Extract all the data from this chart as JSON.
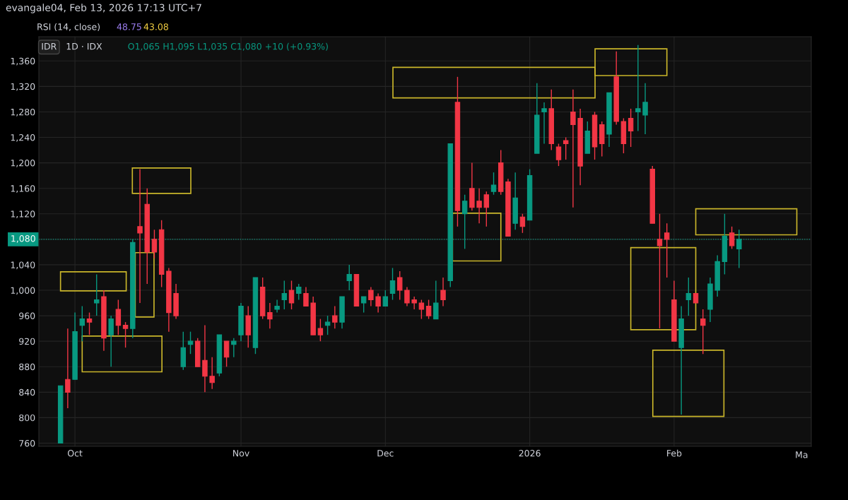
{
  "chart_data": {
    "type": "candlestick",
    "title": "1D · IDX",
    "annotations": [
      "evangale04, Feb 13, 2026 17:13 UTC+7",
      "RSI (14, close)",
      "48.75",
      "43.08",
      "IDR",
      "O1,065 H1,095 L1,035 C1,080 +10 (+0.93%)",
      "Ma"
    ],
    "categories": [
      null,
      null,
      "Oct",
      null,
      null,
      null,
      null,
      null,
      null,
      null,
      null,
      null,
      null,
      null,
      null,
      null,
      null,
      null,
      null,
      null,
      null,
      null,
      null,
      null,
      null,
      "Nov",
      null,
      null,
      null,
      null,
      null,
      null,
      null,
      null,
      null,
      null,
      null,
      null,
      null,
      null,
      null,
      null,
      null,
      null,
      null,
      "Dec",
      null,
      null,
      null,
      null,
      null,
      null,
      null,
      null,
      null,
      null,
      null,
      null,
      null,
      null,
      null,
      null,
      null,
      null,
      null,
      "2026",
      null,
      null,
      null,
      null,
      null,
      null,
      null,
      null,
      null,
      null,
      null,
      null,
      null,
      null,
      null,
      null,
      null,
      null,
      null,
      "Feb",
      null,
      null,
      null,
      null,
      null,
      null,
      null,
      null,
      null
    ],
    "ohlc": [
      [
        760,
        850,
        760,
        850
      ],
      [
        860,
        940,
        815,
        840
      ],
      [
        860,
        965,
        860,
        935
      ],
      [
        945,
        975,
        920,
        955
      ],
      [
        955,
        965,
        930,
        950
      ],
      [
        980,
        1025,
        960,
        985
      ],
      [
        990,
        1000,
        905,
        925
      ],
      [
        930,
        960,
        880,
        955
      ],
      [
        970,
        985,
        930,
        945
      ],
      [
        945,
        950,
        910,
        940
      ],
      [
        940,
        1080,
        925,
        1075
      ],
      [
        1100,
        1190,
        980,
        1090
      ],
      [
        1135,
        1160,
        1010,
        1060
      ],
      [
        1080,
        1095,
        1050,
        1060
      ],
      [
        1095,
        1110,
        1005,
        1025
      ],
      [
        1030,
        1035,
        935,
        965
      ],
      [
        995,
        1010,
        955,
        960
      ],
      [
        880,
        935,
        875,
        910
      ],
      [
        915,
        935,
        900,
        920
      ],
      [
        920,
        925,
        880,
        880
      ],
      [
        890,
        945,
        840,
        865
      ],
      [
        865,
        895,
        845,
        855
      ],
      [
        870,
        930,
        865,
        930
      ],
      [
        920,
        920,
        880,
        895
      ],
      [
        915,
        925,
        895,
        920
      ],
      [
        930,
        980,
        920,
        975
      ],
      [
        960,
        975,
        910,
        930
      ],
      [
        910,
        1020,
        900,
        1020
      ],
      [
        1005,
        1020,
        955,
        960
      ],
      [
        965,
        980,
        940,
        955
      ],
      [
        970,
        985,
        965,
        975
      ],
      [
        985,
        1015,
        970,
        995
      ],
      [
        1000,
        1015,
        970,
        980
      ],
      [
        995,
        1010,
        985,
        1005
      ],
      [
        995,
        1005,
        975,
        975
      ],
      [
        980,
        990,
        930,
        930
      ],
      [
        940,
        955,
        920,
        930
      ],
      [
        945,
        960,
        930,
        950
      ],
      [
        960,
        975,
        940,
        950
      ],
      [
        950,
        990,
        940,
        990
      ],
      [
        1015,
        1040,
        1000,
        1025
      ],
      [
        1025,
        1025,
        975,
        975
      ],
      [
        980,
        990,
        965,
        990
      ],
      [
        1000,
        1005,
        975,
        985
      ],
      [
        990,
        995,
        965,
        975
      ],
      [
        975,
        1000,
        975,
        990
      ],
      [
        995,
        1035,
        985,
        1015
      ],
      [
        1020,
        1030,
        985,
        1000
      ],
      [
        1000,
        1005,
        975,
        980
      ],
      [
        985,
        990,
        970,
        980
      ],
      [
        980,
        985,
        955,
        970
      ],
      [
        975,
        985,
        955,
        960
      ],
      [
        955,
        1015,
        955,
        980
      ],
      [
        1000,
        1020,
        975,
        985
      ],
      [
        1015,
        1230,
        1005,
        1230
      ],
      [
        1295,
        1335,
        1100,
        1125
      ],
      [
        1120,
        1150,
        1065,
        1140
      ],
      [
        1160,
        1200,
        1125,
        1130
      ],
      [
        1140,
        1160,
        1105,
        1130
      ],
      [
        1150,
        1155,
        1100,
        1130
      ],
      [
        1155,
        1185,
        1150,
        1165
      ],
      [
        1200,
        1220,
        1150,
        1155
      ],
      [
        1170,
        1175,
        1085,
        1085
      ],
      [
        1105,
        1185,
        1095,
        1145
      ],
      [
        1115,
        1120,
        1090,
        1100
      ],
      [
        1110,
        1190,
        1110,
        1180
      ],
      [
        1215,
        1325,
        1215,
        1275
      ],
      [
        1280,
        1295,
        1230,
        1285
      ],
      [
        1285,
        1315,
        1220,
        1230
      ],
      [
        1225,
        1230,
        1195,
        1205
      ],
      [
        1235,
        1240,
        1205,
        1230
      ],
      [
        1280,
        1315,
        1130,
        1260
      ],
      [
        1270,
        1285,
        1165,
        1195
      ],
      [
        1215,
        1265,
        1215,
        1250
      ],
      [
        1275,
        1280,
        1205,
        1225
      ],
      [
        1260,
        1265,
        1210,
        1230
      ],
      [
        1245,
        1310,
        1225,
        1310
      ],
      [
        1335,
        1375,
        1260,
        1265
      ],
      [
        1265,
        1270,
        1215,
        1230
      ],
      [
        1270,
        1285,
        1225,
        1250
      ],
      [
        1280,
        1385,
        1250,
        1285
      ],
      [
        1275,
        1325,
        1245,
        1295
      ],
      [
        1190,
        1195,
        1105,
        1105
      ],
      [
        1080,
        1120,
        940,
        1070
      ],
      [
        1090,
        1105,
        1020,
        1080
      ],
      [
        985,
        1015,
        920,
        920
      ],
      [
        910,
        975,
        805,
        955
      ],
      [
        985,
        1020,
        960,
        995
      ],
      [
        995,
        995,
        980,
        980
      ],
      [
        955,
        970,
        900,
        945
      ],
      [
        970,
        1020,
        950,
        1010
      ],
      [
        1000,
        1055,
        990,
        1045
      ],
      [
        1045,
        1120,
        1025,
        1085
      ],
      [
        1090,
        1100,
        1065,
        1070
      ],
      [
        1065,
        1095,
        1035,
        1080
      ]
    ],
    "colors": [
      "#089981",
      "#f23645",
      "#089981",
      "#089981",
      "#f23645",
      "#089981",
      "#f23645",
      "#089981",
      "#f23645",
      "#f23645",
      "#089981",
      "#f23645",
      "#f23645",
      "#f23645",
      "#f23645",
      "#f23645",
      "#f23645",
      "#089981",
      "#089981",
      "#f23645",
      "#f23645",
      "#f23645",
      "#089981",
      "#f23645",
      "#089981",
      "#089981",
      "#f23645",
      "#089981",
      "#f23645",
      "#f23645",
      "#089981",
      "#089981",
      "#f23645",
      "#089981",
      "#f23645",
      "#f23645",
      "#f23645",
      "#089981",
      "#f23645",
      "#089981",
      "#089981",
      "#f23645",
      "#089981",
      "#f23645",
      "#f23645",
      "#089981",
      "#089981",
      "#f23645",
      "#f23645",
      "#f23645",
      "#f23645",
      "#f23645",
      "#089981",
      "#f23645",
      "#089981",
      "#f23645",
      "#089981",
      "#f23645",
      "#f23645",
      "#f23645",
      "#089981",
      "#f23645",
      "#f23645",
      "#089981",
      "#f23645",
      "#089981",
      "#089981",
      "#089981",
      "#f23645",
      "#f23645",
      "#f23645",
      "#f23645",
      "#f23645",
      "#089981",
      "#f23645",
      "#f23645",
      "#089981",
      "#f23645",
      "#f23645",
      "#f23645",
      "#089981",
      "#089981",
      "#f23645",
      "#f23645",
      "#f23645",
      "#f23645",
      "#089981",
      "#089981",
      "#f23645",
      "#f23645",
      "#089981",
      "#089981",
      "#089981",
      "#f23645",
      "#089981"
    ],
    "ylim": [
      755,
      1398
    ],
    "yticks": [
      {
        "value": 760,
        "label": "760"
      },
      {
        "value": 800,
        "label": "800"
      },
      {
        "value": 840,
        "label": "840"
      },
      {
        "value": 880,
        "label": "880"
      },
      {
        "value": 920,
        "label": "920"
      },
      {
        "value": 960,
        "label": "960"
      },
      {
        "value": 1000,
        "label": "1,000"
      },
      {
        "value": 1040,
        "label": "1,040"
      },
      {
        "value": 1080,
        "label": "1,080"
      },
      {
        "value": 1120,
        "label": "1,120"
      },
      {
        "value": 1160,
        "label": "1,160"
      },
      {
        "value": 1200,
        "label": "1,200"
      },
      {
        "value": 1240,
        "label": "1,240"
      },
      {
        "value": 1280,
        "label": "1,280"
      },
      {
        "value": 1320,
        "label": "1,320"
      },
      {
        "value": 1360,
        "label": "1,360"
      }
    ],
    "ref_lines": [
      {
        "axis": "y",
        "value": 1080,
        "label": "1,080",
        "color": "#089981",
        "line_style": "dotted"
      }
    ],
    "grid": true,
    "legend": false
  }
}
